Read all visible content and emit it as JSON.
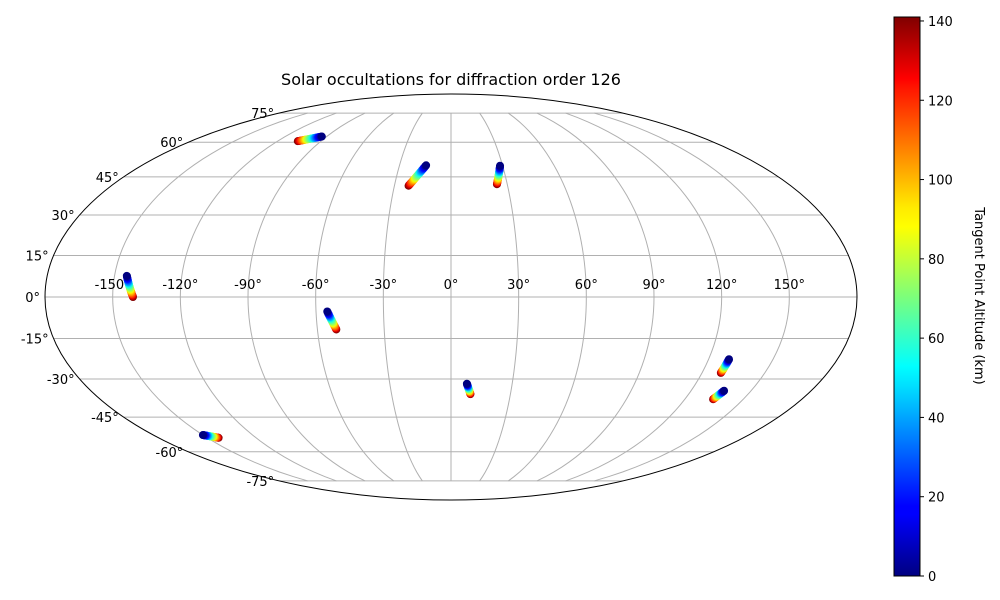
{
  "chart_data": {
    "type": "scatter",
    "projection": "mollweide",
    "title": "Solar occultations for diffraction order 126",
    "x_ticks": [
      "-150°",
      "-120°",
      "-90°",
      "-60°",
      "-30°",
      "0°",
      "30°",
      "60°",
      "90°",
      "120°",
      "150°"
    ],
    "x_tick_values": [
      -150,
      -120,
      -90,
      -60,
      -30,
      0,
      30,
      60,
      90,
      120,
      150
    ],
    "y_ticks": [
      "-75°",
      "-60°",
      "-45°",
      "-30°",
      "-15°",
      "0°",
      "15°",
      "30°",
      "45°",
      "60°",
      "75°"
    ],
    "y_tick_values": [
      -75,
      -60,
      -45,
      -30,
      -15,
      0,
      15,
      30,
      45,
      60,
      75
    ],
    "grid": true,
    "colorbar": {
      "label": "Tangent Point Altitude (km)",
      "colormap": "jet",
      "range": [
        0,
        141
      ],
      "ticks": [
        "0",
        "20",
        "40",
        "60",
        "80",
        "100",
        "120",
        "140"
      ],
      "tick_values": [
        0,
        20,
        40,
        60,
        80,
        100,
        120,
        140
      ],
      "placement": "right"
    },
    "tracks": [
      {
        "start": {
          "lon": -93.5,
          "lat": 62.7,
          "alt": 0
        },
        "end": {
          "lon": -106,
          "lat": 60.5,
          "alt": 141
        }
      },
      {
        "start": {
          "lon": -14.5,
          "lat": 49.8,
          "alt": 0
        },
        "end": {
          "lon": -22.5,
          "lat": 41.4,
          "alt": 141
        }
      },
      {
        "start": {
          "lon": 28.5,
          "lat": 49.6,
          "alt": 0
        },
        "end": {
          "lon": 24.5,
          "lat": 42.0,
          "alt": 141
        }
      },
      {
        "start": {
          "lon": -144.5,
          "lat": 7.6,
          "alt": 0
        },
        "end": {
          "lon": -141,
          "lat": 0,
          "alt": 141
        }
      },
      {
        "start": {
          "lon": -55,
          "lat": -5.2,
          "alt": 0
        },
        "end": {
          "lon": -51.5,
          "lat": -11.7,
          "alt": 141
        }
      },
      {
        "start": {
          "lon": 7.8,
          "lat": -31.8,
          "alt": 0
        },
        "end": {
          "lon": 9.8,
          "lat": -35.8,
          "alt": 141
        }
      },
      {
        "start": {
          "lon": 129.5,
          "lat": -22.6,
          "alt": 0
        },
        "end": {
          "lon": 129.0,
          "lat": -27.7,
          "alt": 141
        }
      },
      {
        "start": {
          "lon": 136.5,
          "lat": -34.5,
          "alt": 0
        },
        "end": {
          "lon": 134.5,
          "lat": -37.8,
          "alt": 141
        }
      },
      {
        "start": {
          "lon": -150,
          "lat": -52.5,
          "alt": 0
        },
        "end": {
          "lon": -143,
          "lat": -53.7,
          "alt": 141
        }
      }
    ]
  }
}
